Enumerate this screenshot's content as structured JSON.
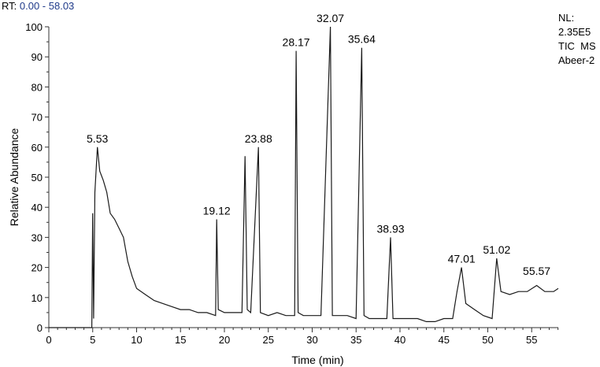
{
  "header": {
    "rt_label": "RT:",
    "rt_range": "0.00 - 58.03"
  },
  "info": {
    "nl_label": "NL:",
    "nl_value": "2.35E5",
    "scan": "TIC  MS",
    "sample": "Abeer-2"
  },
  "chart_data": {
    "type": "line",
    "title": "",
    "xlabel": "Time (min)",
    "ylabel": "Relative Abundance",
    "xlim": [
      0,
      58.03
    ],
    "ylim": [
      0,
      100
    ],
    "x_ticks": [
      0,
      5,
      10,
      15,
      20,
      25,
      30,
      35,
      40,
      45,
      50,
      55
    ],
    "y_ticks": [
      0,
      10,
      20,
      30,
      40,
      50,
      60,
      70,
      80,
      90,
      100
    ],
    "grid": false,
    "line_color": "#1a1a1a",
    "series": [
      {
        "x": [
          0,
          4.9,
          5.0,
          5.1,
          5.25,
          5.53,
          5.8,
          6.2,
          6.6,
          7.0,
          7.5,
          8.0,
          8.5,
          9.0,
          9.5,
          10.0,
          11.0,
          12.0,
          13.0,
          14.0,
          15.0,
          16.0,
          17.0,
          18.0,
          19.0,
          19.12,
          19.3,
          20.0,
          21.0,
          22.0,
          22.35,
          22.6,
          23.0,
          23.88,
          24.1,
          25.0,
          26.0,
          27.0,
          28.0,
          28.17,
          28.4,
          29.0,
          30.0,
          31.0,
          32.07,
          32.3,
          33.0,
          34.0,
          35.0,
          35.64,
          35.9,
          36.5,
          37.5,
          38.5,
          38.93,
          39.2,
          40.0,
          41.0,
          42.0,
          43.0,
          44.0,
          45.0,
          46.0,
          46.5,
          47.01,
          47.5,
          48.5,
          49.5,
          50.5,
          51.02,
          51.5,
          52.5,
          53.5,
          54.5,
          55.57,
          56.5,
          57.5,
          58.03
        ],
        "values": [
          0,
          0,
          38,
          3,
          45,
          60,
          52,
          49,
          45,
          38,
          36,
          33,
          30,
          22,
          17,
          13,
          11,
          9,
          8,
          7,
          6,
          6,
          5,
          5,
          4,
          36,
          6,
          5,
          5,
          5,
          57,
          6,
          5,
          60,
          5,
          4,
          5,
          4,
          4,
          92,
          5,
          4,
          4,
          4,
          100,
          4,
          4,
          4,
          3,
          93,
          4,
          3,
          3,
          3,
          30,
          3,
          3,
          3,
          3,
          2,
          2,
          3,
          3,
          12,
          20,
          8,
          6,
          4,
          3,
          23,
          12,
          11,
          12,
          12,
          14,
          12,
          12,
          13
        ]
      }
    ],
    "peak_labels": [
      {
        "x": 5.53,
        "y": 60,
        "text": "5.53"
      },
      {
        "x": 19.12,
        "y": 36,
        "text": "19.12"
      },
      {
        "x": 23.88,
        "y": 60,
        "text": "23.88"
      },
      {
        "x": 28.17,
        "y": 92,
        "text": "28.17"
      },
      {
        "x": 32.07,
        "y": 100,
        "text": "32.07"
      },
      {
        "x": 35.64,
        "y": 93,
        "text": "35.64"
      },
      {
        "x": 38.93,
        "y": 30,
        "text": "38.93"
      },
      {
        "x": 47.01,
        "y": 20,
        "text": "47.01"
      },
      {
        "x": 51.02,
        "y": 23,
        "text": "51.02"
      },
      {
        "x": 55.57,
        "y": 16,
        "text": "55.57"
      }
    ]
  }
}
